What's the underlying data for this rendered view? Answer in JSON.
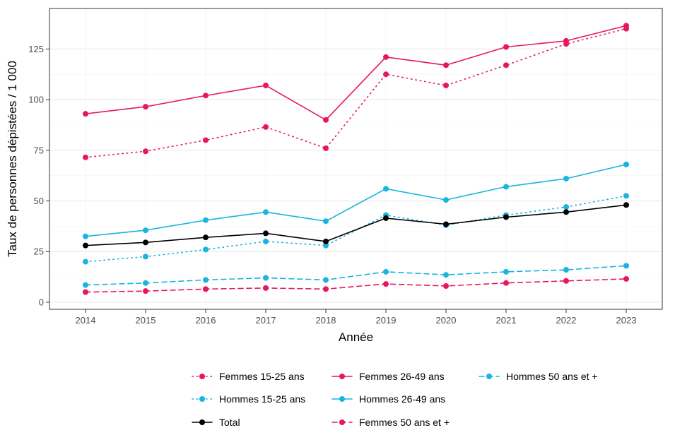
{
  "chart_data": {
    "type": "line",
    "title": "",
    "xlabel": "Année",
    "ylabel": "Taux de personnes dépistées / 1 000",
    "x": [
      2014,
      2015,
      2016,
      2017,
      2018,
      2019,
      2020,
      2021,
      2022,
      2023
    ],
    "x_tick_labels": [
      "2014",
      "2015",
      "2016",
      "2017",
      "2018",
      "2019",
      "2020",
      "2021",
      "2022",
      "2023"
    ],
    "ylim": [
      -3.5,
      145
    ],
    "y_ticks": [
      0,
      25,
      50,
      75,
      100,
      125
    ],
    "y_tick_labels": [
      "0",
      "25",
      "50",
      "75",
      "100",
      "125"
    ],
    "grid": true,
    "legend_position": "bottom",
    "series": [
      {
        "name": "Femmes 15-25 ans",
        "color": "#e8175d",
        "linestyle": "dotted",
        "values": [
          71.5,
          74.5,
          80,
          86.5,
          76,
          112.5,
          107,
          117,
          127.5,
          135
        ]
      },
      {
        "name": "Hommes 15-25 ans",
        "color": "#19b4e0",
        "linestyle": "dotted",
        "values": [
          20,
          22.5,
          26,
          30,
          28,
          43,
          38,
          43,
          47,
          52.5
        ]
      },
      {
        "name": "Total",
        "color": "#000000",
        "linestyle": "solid",
        "values": [
          28,
          29.5,
          32,
          34,
          30,
          41.5,
          38.5,
          42,
          44.5,
          48
        ]
      },
      {
        "name": "Femmes 26-49 ans",
        "color": "#e8175d",
        "linestyle": "solid",
        "values": [
          93,
          96.5,
          102,
          107,
          90,
          121,
          117,
          126,
          129,
          136.5
        ]
      },
      {
        "name": "Hommes 26-49 ans",
        "color": "#19b4e0",
        "linestyle": "solid",
        "values": [
          32.5,
          35.5,
          40.5,
          44.5,
          40,
          56,
          50.5,
          57,
          61,
          68
        ]
      },
      {
        "name": "Femmes 50 ans et +",
        "color": "#e8175d",
        "linestyle": "dashed",
        "values": [
          5,
          5.5,
          6.5,
          7,
          6.5,
          9,
          8,
          9.5,
          10.5,
          11.5
        ]
      },
      {
        "name": "Hommes 50 ans et +",
        "color": "#19b4e0",
        "linestyle": "dashed",
        "values": [
          8.5,
          9.5,
          11,
          12,
          11,
          15,
          13.5,
          15,
          16,
          18
        ]
      }
    ]
  }
}
